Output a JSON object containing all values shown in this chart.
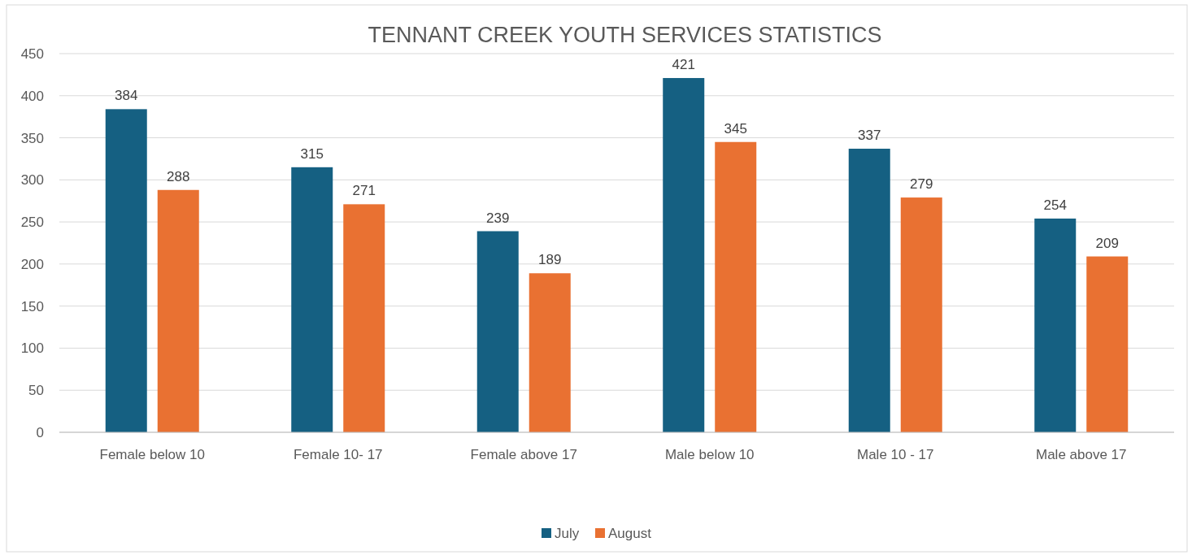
{
  "chart_data": {
    "type": "bar",
    "title": "TENNANT CREEK YOUTH SERVICES STATISTICS",
    "categories": [
      "Female below 10",
      "Female 10- 17",
      "Female above 17",
      "Male below 10",
      "Male 10 - 17",
      "Male above 17"
    ],
    "series": [
      {
        "name": "July",
        "color": "#156082",
        "values": [
          384,
          315,
          239,
          421,
          337,
          254
        ]
      },
      {
        "name": "August",
        "color": "#e97132",
        "values": [
          288,
          271,
          189,
          345,
          279,
          209
        ]
      }
    ],
    "ylim": [
      0,
      450
    ],
    "yticks": [
      0,
      50,
      100,
      150,
      200,
      250,
      300,
      350,
      400,
      450
    ],
    "grid": "y",
    "legend": "bottom",
    "data_labels": true
  }
}
